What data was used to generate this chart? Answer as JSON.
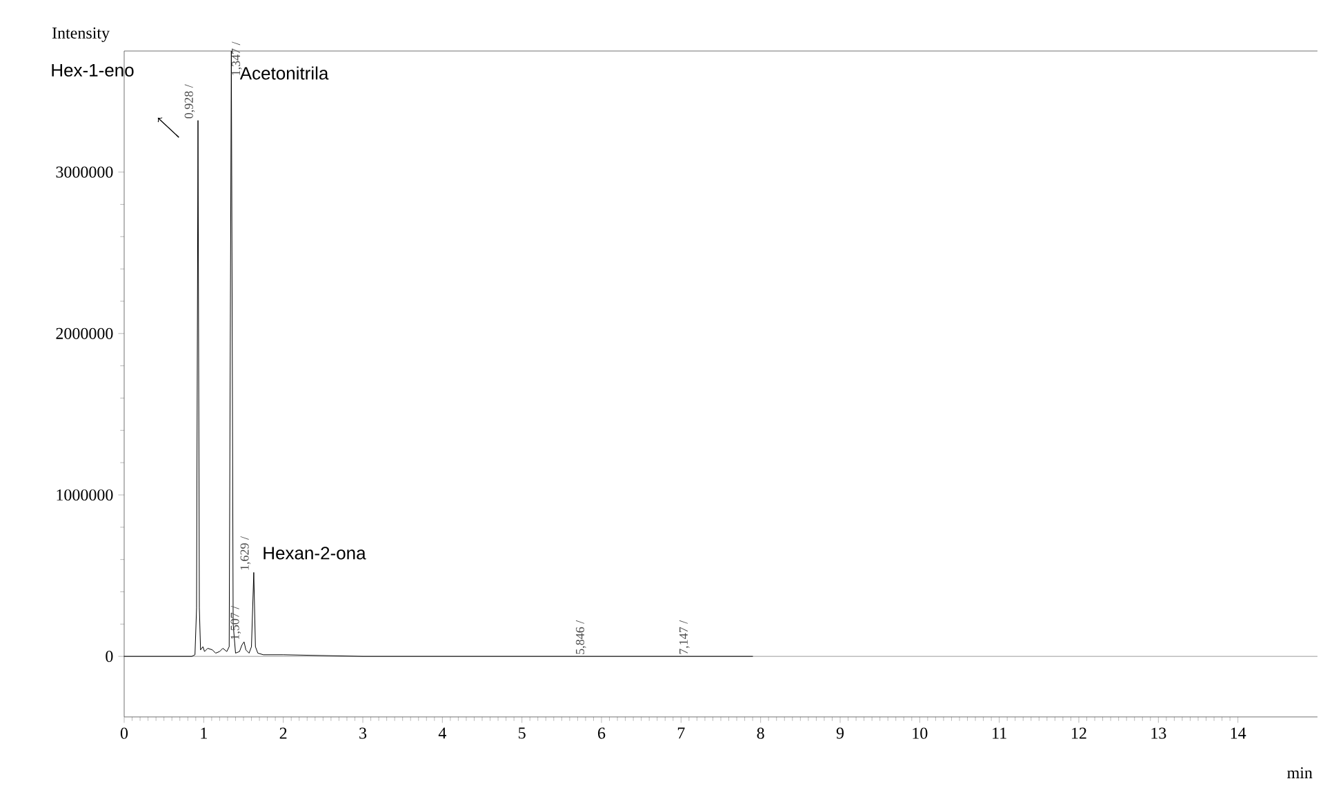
{
  "chart_data": {
    "type": "line",
    "xlabel": "min",
    "ylabel": "Intensity",
    "xlim": [
      0,
      15
    ],
    "ylim": [
      -375000,
      3750000
    ],
    "xticks": [
      0,
      1,
      2,
      3,
      4,
      5,
      6,
      7,
      8,
      9,
      10,
      11,
      12,
      13,
      14
    ],
    "yticks": [
      0,
      1000000,
      2000000,
      3000000
    ],
    "series": [
      {
        "color": "#000000",
        "x": [
          0,
          0.85,
          0.89,
          0.91,
          0.928,
          0.945,
          0.96,
          0.99,
          1.01,
          1.05,
          1.11,
          1.15,
          1.2,
          1.24,
          1.29,
          1.32,
          1.347,
          1.37,
          1.4,
          1.45,
          1.48,
          1.507,
          1.53,
          1.57,
          1.6,
          1.629,
          1.65,
          1.68,
          1.75,
          2.0,
          3.0,
          5.0,
          5.846,
          6.5,
          7.147,
          7.9
        ],
        "values": [
          0,
          0,
          10000,
          300000,
          3320000,
          300000,
          40000,
          60000,
          30000,
          50000,
          40000,
          20000,
          30000,
          50000,
          30000,
          60000,
          3750000,
          200000,
          20000,
          30000,
          70000,
          90000,
          40000,
          20000,
          60000,
          520000,
          60000,
          20000,
          10000,
          10000,
          0,
          0,
          0,
          0,
          0,
          0
        ]
      }
    ],
    "ref_lines": [
      {
        "axis": "y",
        "value": 0,
        "color": "#808080"
      }
    ],
    "annotations": [
      "Hex-1-eno",
      {
        "text": "Acetonitrila",
        "x": 1.347,
        "y": 3750000
      },
      {
        "text": "Hexan-2-ona",
        "x": 1.629,
        "y": 520000
      },
      {
        "text": "0,928 /",
        "x": 0.928,
        "y": 3320000
      },
      {
        "text": "1,347 /",
        "x": 1.347,
        "y": 3750000
      },
      {
        "text": "1,507 /",
        "x": 1.507,
        "y": 90000
      },
      {
        "text": "1,629 /",
        "x": 1.629,
        "y": 520000
      },
      {
        "text": "5,846 /",
        "x": 5.846,
        "y": 0
      },
      {
        "text": "7,147 /",
        "x": 7.147,
        "y": 0
      }
    ]
  }
}
